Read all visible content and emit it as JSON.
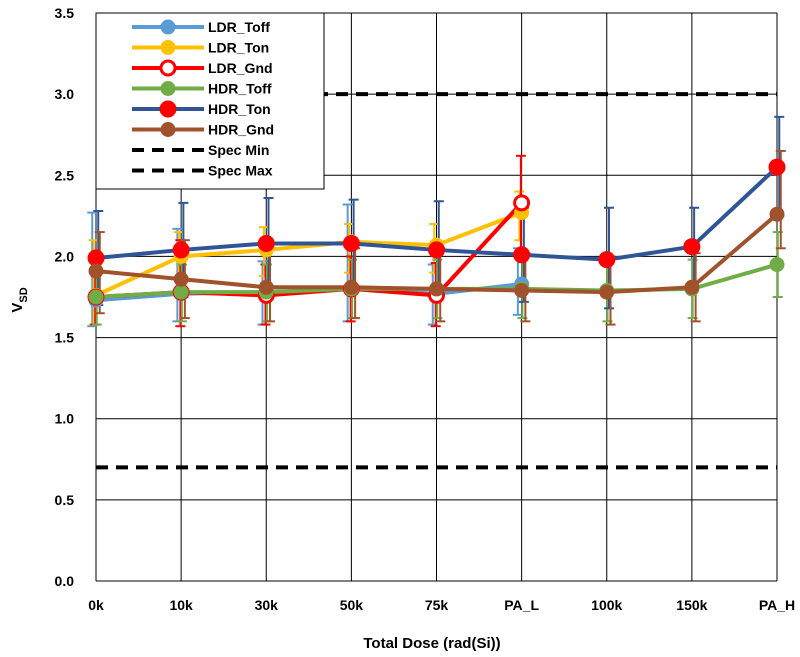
{
  "chart_data": {
    "type": "line",
    "title": "",
    "xlabel": "Total Dose (rad(Si))",
    "ylabel_main": "V",
    "ylabel_sub": "SD",
    "categories": [
      "0k",
      "10k",
      "30k",
      "50k",
      "75k",
      "PA_L",
      "100k",
      "150k",
      "PA_H"
    ],
    "ylim": [
      0,
      3.5
    ],
    "yticks": [
      "0.0",
      "0.5",
      "1.0",
      "1.5",
      "2.0",
      "2.5",
      "3.0",
      "3.5"
    ],
    "grid": true,
    "legend_position": "top-left",
    "series": [
      {
        "name": "LDR_Toff",
        "color": "#5B9BD5",
        "marker": "filled",
        "values": [
          1.73,
          1.77,
          1.78,
          1.8,
          1.77,
          1.83,
          null,
          null,
          null
        ],
        "err_low": [
          1.57,
          1.6,
          1.58,
          1.6,
          1.58,
          1.64,
          null,
          null,
          null
        ],
        "err_high": [
          2.27,
          2.17,
          1.97,
          2.32,
          1.95,
          2.05,
          null,
          null,
          null
        ]
      },
      {
        "name": "LDR_Ton",
        "color": "#FFC000",
        "marker": "filled",
        "values": [
          1.76,
          2.0,
          2.04,
          2.09,
          2.07,
          2.27,
          null,
          null,
          null
        ],
        "err_low": [
          1.58,
          1.8,
          1.88,
          1.9,
          1.9,
          2.1,
          null,
          null,
          null
        ],
        "err_high": [
          2.1,
          2.15,
          2.18,
          2.2,
          2.2,
          2.4,
          null,
          null,
          null
        ]
      },
      {
        "name": "LDR_Gnd",
        "color": "#FF0000",
        "marker": "open",
        "values": [
          1.75,
          1.78,
          1.76,
          1.8,
          1.76,
          2.33,
          null,
          null,
          null
        ],
        "err_low": [
          1.58,
          1.57,
          1.58,
          1.6,
          1.57,
          2.02,
          null,
          null,
          null
        ],
        "err_high": [
          1.93,
          2.1,
          1.95,
          2.0,
          1.96,
          2.62,
          null,
          null,
          null
        ]
      },
      {
        "name": "HDR_Toff",
        "color": "#70AD47",
        "marker": "filled",
        "values": [
          1.75,
          1.78,
          1.78,
          1.8,
          1.8,
          1.8,
          1.79,
          1.8,
          1.95
        ],
        "err_low": [
          1.58,
          1.6,
          1.6,
          1.62,
          1.62,
          1.62,
          1.6,
          1.62,
          1.75
        ],
        "err_high": [
          1.95,
          1.95,
          1.95,
          1.98,
          1.98,
          1.98,
          1.98,
          1.98,
          2.15
        ]
      },
      {
        "name": "HDR_Ton",
        "color": "#2F5597",
        "marker": "red",
        "values": [
          1.99,
          2.04,
          2.08,
          2.08,
          2.04,
          2.01,
          1.98,
          2.06,
          2.55
        ],
        "err_low": [
          1.7,
          1.75,
          1.78,
          1.8,
          1.75,
          1.72,
          1.68,
          1.8,
          2.25
        ],
        "err_high": [
          2.28,
          2.33,
          2.36,
          2.35,
          2.34,
          2.3,
          2.3,
          2.3,
          2.86
        ]
      },
      {
        "name": "HDR_Gnd",
        "color": "#A0522D",
        "marker": "filled",
        "values": [
          1.91,
          1.86,
          1.81,
          1.81,
          1.8,
          1.79,
          1.78,
          1.81,
          2.26
        ],
        "err_low": [
          1.65,
          1.62,
          1.6,
          1.62,
          1.6,
          1.6,
          1.58,
          1.6,
          2.05
        ],
        "err_high": [
          2.15,
          2.1,
          2.05,
          2.05,
          2.05,
          2.02,
          2.0,
          2.02,
          2.65
        ]
      }
    ],
    "spec_lines": [
      {
        "name": "Spec Min",
        "value": 0.7
      },
      {
        "name": "Spec Max",
        "value": 3.0
      }
    ]
  }
}
